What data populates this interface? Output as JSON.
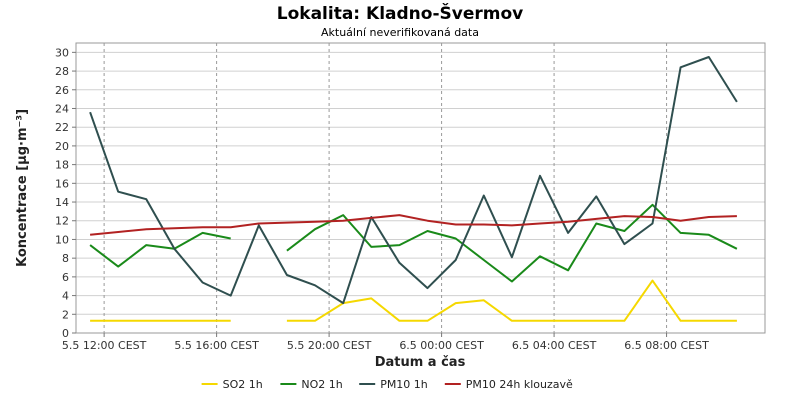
{
  "chart_data": {
    "type": "line",
    "title": "Lokalita: Kladno-Švermov",
    "subtitle": "Aktuální neverifikovaná data",
    "xlabel": "Datum a čas",
    "ylabel": "Koncentrace [µg·m⁻³]",
    "ylim": [
      0,
      31
    ],
    "yticks": [
      0,
      2,
      4,
      6,
      8,
      10,
      12,
      14,
      16,
      18,
      20,
      22,
      24,
      26,
      28,
      30
    ],
    "xlim": [
      11,
      35.5
    ],
    "x": [
      11.5,
      12.5,
      13.5,
      14.5,
      15.5,
      16.5,
      17.5,
      18.5,
      19.5,
      20.5,
      21.5,
      22.5,
      23.5,
      24.5,
      25.5,
      26.5,
      27.5,
      28.5,
      29.5,
      30.5,
      31.5,
      32.5,
      33.5,
      34.5
    ],
    "xticks": [
      {
        "x": 12,
        "label": "5.5 12:00 CEST"
      },
      {
        "x": 16,
        "label": "5.5 16:00 CEST"
      },
      {
        "x": 20,
        "label": "5.5 20:00 CEST"
      },
      {
        "x": 24,
        "label": "6.5 00:00 CEST"
      },
      {
        "x": 28,
        "label": "6.5 04:00 CEST"
      },
      {
        "x": 32,
        "label": "6.5 08:00 CEST"
      }
    ],
    "grid": true,
    "legend_position": "bottom",
    "series": [
      {
        "name": "SO2 1h",
        "color": "#f5d800",
        "values": [
          1.3,
          1.3,
          1.3,
          1.3,
          1.3,
          1.3,
          null,
          1.3,
          1.3,
          3.2,
          3.7,
          1.3,
          1.3,
          3.2,
          3.5,
          1.3,
          1.3,
          1.3,
          1.3,
          1.3,
          5.6,
          1.3,
          1.3,
          1.3
        ]
      },
      {
        "name": "NO2 1h",
        "color": "#1a8a1a",
        "values": [
          9.4,
          7.1,
          9.4,
          9.0,
          10.7,
          10.1,
          null,
          8.8,
          11.1,
          12.6,
          9.2,
          9.4,
          10.9,
          10.1,
          7.8,
          5.5,
          8.2,
          6.7,
          11.7,
          10.9,
          13.7,
          10.7,
          10.5,
          9.0
        ]
      },
      {
        "name": "PM10 1h",
        "color": "#2f4f4f",
        "values": [
          23.6,
          15.1,
          14.3,
          9.0,
          5.4,
          4.0,
          11.5,
          6.2,
          5.1,
          3.2,
          12.4,
          7.5,
          4.8,
          7.8,
          14.7,
          8.1,
          16.8,
          10.7,
          14.6,
          9.5,
          11.7,
          28.4,
          29.5,
          24.7
        ]
      },
      {
        "name": "PM10 24h klouzavě",
        "color": "#b22222",
        "values": [
          10.5,
          10.8,
          11.1,
          11.2,
          11.3,
          11.3,
          11.7,
          11.8,
          11.9,
          12.0,
          12.3,
          12.6,
          12.0,
          11.6,
          11.6,
          11.5,
          11.7,
          11.9,
          12.2,
          12.5,
          12.4,
          12.0,
          12.4,
          12.5
        ]
      }
    ]
  }
}
